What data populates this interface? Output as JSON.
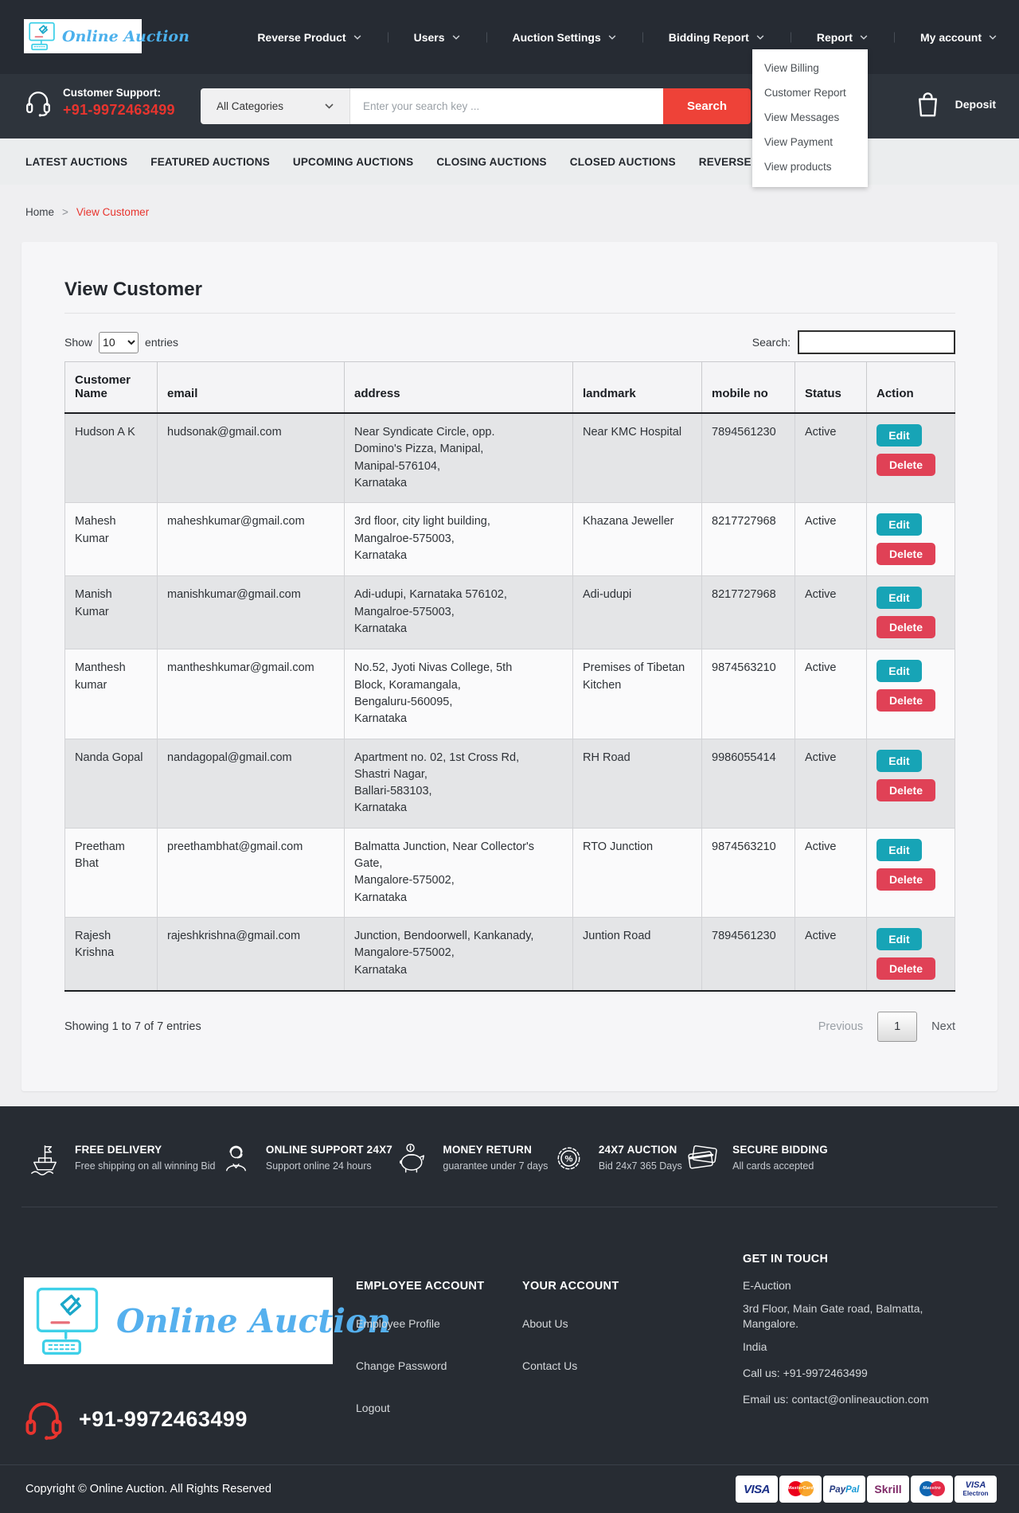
{
  "brand": {
    "name": "Online Auction",
    "support_label": "Customer Support:",
    "phone": "+91-9972463499"
  },
  "nav": {
    "items": [
      {
        "label": "Reverse Product"
      },
      {
        "label": "Users"
      },
      {
        "label": "Auction Settings"
      },
      {
        "label": "Bidding Report"
      },
      {
        "label": "Report"
      },
      {
        "label": "My account"
      }
    ],
    "deposit_label": "Deposit"
  },
  "report_dropdown": {
    "items": [
      "View Billing",
      "Customer Report",
      "View Messages",
      "View Payment",
      "View products"
    ]
  },
  "search_bar": {
    "category": "All Categories",
    "placeholder": "Enter your search key ...",
    "button": "Search"
  },
  "tabs": [
    "LATEST AUCTIONS",
    "FEATURED AUCTIONS",
    "UPCOMING AUCTIONS",
    "CLOSING AUCTIONS",
    "CLOSED AUCTIONS",
    "REVERSE BID"
  ],
  "breadcrumb": {
    "home": "Home",
    "sep": ">",
    "current": "View Customer"
  },
  "page": {
    "title": "View Customer",
    "show_label": "Show",
    "entries_label": "entries",
    "page_size": "10",
    "search_label": "Search:",
    "search_value": "",
    "summary": "Showing 1 to 7 of 7 entries",
    "pagination": {
      "previous": "Previous",
      "page": "1",
      "next": "Next"
    }
  },
  "table": {
    "headers": [
      "Customer Name",
      "email",
      "address",
      "landmark",
      "mobile no",
      "Status",
      "Action"
    ],
    "actions": {
      "edit": "Edit",
      "delete": "Delete"
    },
    "rows": [
      {
        "name": "Hudson A K",
        "email": "hudsonak@gmail.com",
        "address": "Near Syndicate Circle, opp.\nDomino's Pizza, Manipal,\nManipal-576104,\nKarnataka",
        "landmark": "Near KMC Hospital",
        "mobile": "7894561230",
        "status": "Active"
      },
      {
        "name": "Mahesh Kumar",
        "email": "maheshkumar@gmail.com",
        "address": "3rd floor, city light building,\nMangalroe-575003,\nKarnataka",
        "landmark": "Khazana Jeweller",
        "mobile": "8217727968",
        "status": "Active"
      },
      {
        "name": "Manish Kumar",
        "email": "manishkumar@gmail.com",
        "address": "Adi-udupi, Karnataka 576102,\nMangalroe-575003,\nKarnataka",
        "landmark": "Adi-udupi",
        "mobile": "8217727968",
        "status": "Active"
      },
      {
        "name": "Manthesh kumar",
        "email": "mantheshkumar@gmail.com",
        "address": "No.52, Jyoti Nivas College, 5th\nBlock, Koramangala,\nBengaluru-560095,\nKarnataka",
        "landmark": "Premises of Tibetan Kitchen",
        "mobile": "9874563210",
        "status": "Active"
      },
      {
        "name": "Nanda Gopal",
        "email": "nandagopal@gmail.com",
        "address": "Apartment no. 02, 1st Cross Rd,\nShastri Nagar,\nBallari-583103,\nKarnataka",
        "landmark": "RH Road",
        "mobile": "9986055414",
        "status": "Active"
      },
      {
        "name": "Preetham Bhat",
        "email": "preethambhat@gmail.com",
        "address": "Balmatta Junction, Near Collector's\nGate,\nMangalore-575002,\nKarnataka",
        "landmark": "RTO Junction",
        "mobile": "9874563210",
        "status": "Active"
      },
      {
        "name": "Rajesh Krishna",
        "email": "rajeshkrishna@gmail.com",
        "address": "Junction, Bendoorwell, Kankanady,\nMangalore-575002,\nKarnataka",
        "landmark": "Juntion Road",
        "mobile": "7894561230",
        "status": "Active"
      }
    ]
  },
  "footer": {
    "features": [
      {
        "icon": "ship-icon",
        "title": "FREE DELIVERY",
        "subtitle": "Free shipping on all winning Bid"
      },
      {
        "icon": "support-agent-icon",
        "title": "ONLINE SUPPORT 24X7",
        "subtitle": "Support online 24 hours"
      },
      {
        "icon": "piggy-bank-icon",
        "title": "MONEY RETURN",
        "subtitle": "guarantee under 7 days"
      },
      {
        "icon": "badge-percent-icon",
        "icon_glyph": "%",
        "title": "24X7 AUCTION",
        "subtitle": "Bid 24x7 365 Days"
      },
      {
        "icon": "credit-card-icon",
        "title": "SECURE BIDDING",
        "subtitle": "All cards accepted"
      }
    ],
    "employee_account": {
      "heading": "EMPLOYEE ACCOUNT",
      "links": [
        "Employee Profile",
        "Change Password",
        "Logout"
      ]
    },
    "your_account": {
      "heading": "YOUR ACCOUNT",
      "links": [
        "About Us",
        "Contact Us"
      ]
    },
    "get_in_touch": {
      "heading": "GET IN TOUCH",
      "lines": [
        "E-Auction",
        "3rd Floor, Main Gate road, Balmatta, Mangalore.",
        "India"
      ],
      "call": "Call us: +91-9972463499",
      "email": "Email us: contact@onlineauction.com"
    },
    "copyright": "Copyright © Online Auction. All Rights Reserved",
    "payments": [
      {
        "type": "visa",
        "label": "VISA"
      },
      {
        "type": "mastercard",
        "label": "MasterCard"
      },
      {
        "type": "paypal",
        "label": "PayPal"
      },
      {
        "type": "skrill",
        "label": "Skrill"
      },
      {
        "type": "maestro",
        "label": "Maestro"
      },
      {
        "type": "visa-electron",
        "label": "VISA",
        "label2": "Electron"
      }
    ],
    "colors": {
      "accent_red": "#e8342e",
      "teal": "#17a4b6",
      "delete_red": "#e04156",
      "logo_blue": "#55b0ee",
      "icon_cyan": "#3ed0e8",
      "dark": "#272c33"
    }
  }
}
